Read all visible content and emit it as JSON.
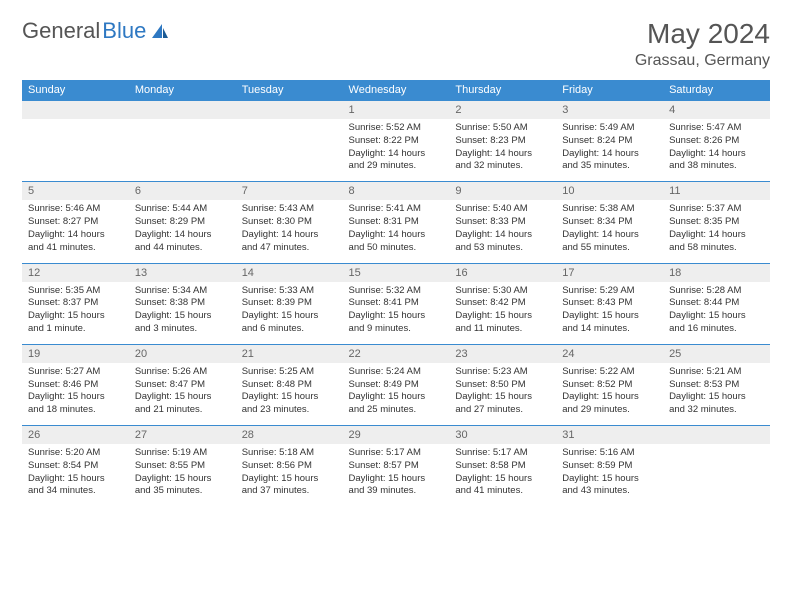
{
  "brand": {
    "part1": "General",
    "part2": "Blue"
  },
  "title": "May 2024",
  "location": "Grassau, Germany",
  "weekday_labels": [
    "Sunday",
    "Monday",
    "Tuesday",
    "Wednesday",
    "Thursday",
    "Friday",
    "Saturday"
  ],
  "header_bg": "#3a8bd0",
  "header_fg": "#ffffff",
  "daynum_bg": "#eeeeee",
  "row_border": "#3a8bd0",
  "weeks": [
    {
      "nums": [
        "",
        "",
        "",
        "1",
        "2",
        "3",
        "4"
      ],
      "details": [
        null,
        null,
        null,
        {
          "sunrise": "Sunrise: 5:52 AM",
          "sunset": "Sunset: 8:22 PM",
          "day1": "Daylight: 14 hours",
          "day2": "and 29 minutes."
        },
        {
          "sunrise": "Sunrise: 5:50 AM",
          "sunset": "Sunset: 8:23 PM",
          "day1": "Daylight: 14 hours",
          "day2": "and 32 minutes."
        },
        {
          "sunrise": "Sunrise: 5:49 AM",
          "sunset": "Sunset: 8:24 PM",
          "day1": "Daylight: 14 hours",
          "day2": "and 35 minutes."
        },
        {
          "sunrise": "Sunrise: 5:47 AM",
          "sunset": "Sunset: 8:26 PM",
          "day1": "Daylight: 14 hours",
          "day2": "and 38 minutes."
        }
      ]
    },
    {
      "nums": [
        "5",
        "6",
        "7",
        "8",
        "9",
        "10",
        "11"
      ],
      "details": [
        {
          "sunrise": "Sunrise: 5:46 AM",
          "sunset": "Sunset: 8:27 PM",
          "day1": "Daylight: 14 hours",
          "day2": "and 41 minutes."
        },
        {
          "sunrise": "Sunrise: 5:44 AM",
          "sunset": "Sunset: 8:29 PM",
          "day1": "Daylight: 14 hours",
          "day2": "and 44 minutes."
        },
        {
          "sunrise": "Sunrise: 5:43 AM",
          "sunset": "Sunset: 8:30 PM",
          "day1": "Daylight: 14 hours",
          "day2": "and 47 minutes."
        },
        {
          "sunrise": "Sunrise: 5:41 AM",
          "sunset": "Sunset: 8:31 PM",
          "day1": "Daylight: 14 hours",
          "day2": "and 50 minutes."
        },
        {
          "sunrise": "Sunrise: 5:40 AM",
          "sunset": "Sunset: 8:33 PM",
          "day1": "Daylight: 14 hours",
          "day2": "and 53 minutes."
        },
        {
          "sunrise": "Sunrise: 5:38 AM",
          "sunset": "Sunset: 8:34 PM",
          "day1": "Daylight: 14 hours",
          "day2": "and 55 minutes."
        },
        {
          "sunrise": "Sunrise: 5:37 AM",
          "sunset": "Sunset: 8:35 PM",
          "day1": "Daylight: 14 hours",
          "day2": "and 58 minutes."
        }
      ]
    },
    {
      "nums": [
        "12",
        "13",
        "14",
        "15",
        "16",
        "17",
        "18"
      ],
      "details": [
        {
          "sunrise": "Sunrise: 5:35 AM",
          "sunset": "Sunset: 8:37 PM",
          "day1": "Daylight: 15 hours",
          "day2": "and 1 minute."
        },
        {
          "sunrise": "Sunrise: 5:34 AM",
          "sunset": "Sunset: 8:38 PM",
          "day1": "Daylight: 15 hours",
          "day2": "and 3 minutes."
        },
        {
          "sunrise": "Sunrise: 5:33 AM",
          "sunset": "Sunset: 8:39 PM",
          "day1": "Daylight: 15 hours",
          "day2": "and 6 minutes."
        },
        {
          "sunrise": "Sunrise: 5:32 AM",
          "sunset": "Sunset: 8:41 PM",
          "day1": "Daylight: 15 hours",
          "day2": "and 9 minutes."
        },
        {
          "sunrise": "Sunrise: 5:30 AM",
          "sunset": "Sunset: 8:42 PM",
          "day1": "Daylight: 15 hours",
          "day2": "and 11 minutes."
        },
        {
          "sunrise": "Sunrise: 5:29 AM",
          "sunset": "Sunset: 8:43 PM",
          "day1": "Daylight: 15 hours",
          "day2": "and 14 minutes."
        },
        {
          "sunrise": "Sunrise: 5:28 AM",
          "sunset": "Sunset: 8:44 PM",
          "day1": "Daylight: 15 hours",
          "day2": "and 16 minutes."
        }
      ]
    },
    {
      "nums": [
        "19",
        "20",
        "21",
        "22",
        "23",
        "24",
        "25"
      ],
      "details": [
        {
          "sunrise": "Sunrise: 5:27 AM",
          "sunset": "Sunset: 8:46 PM",
          "day1": "Daylight: 15 hours",
          "day2": "and 18 minutes."
        },
        {
          "sunrise": "Sunrise: 5:26 AM",
          "sunset": "Sunset: 8:47 PM",
          "day1": "Daylight: 15 hours",
          "day2": "and 21 minutes."
        },
        {
          "sunrise": "Sunrise: 5:25 AM",
          "sunset": "Sunset: 8:48 PM",
          "day1": "Daylight: 15 hours",
          "day2": "and 23 minutes."
        },
        {
          "sunrise": "Sunrise: 5:24 AM",
          "sunset": "Sunset: 8:49 PM",
          "day1": "Daylight: 15 hours",
          "day2": "and 25 minutes."
        },
        {
          "sunrise": "Sunrise: 5:23 AM",
          "sunset": "Sunset: 8:50 PM",
          "day1": "Daylight: 15 hours",
          "day2": "and 27 minutes."
        },
        {
          "sunrise": "Sunrise: 5:22 AM",
          "sunset": "Sunset: 8:52 PM",
          "day1": "Daylight: 15 hours",
          "day2": "and 29 minutes."
        },
        {
          "sunrise": "Sunrise: 5:21 AM",
          "sunset": "Sunset: 8:53 PM",
          "day1": "Daylight: 15 hours",
          "day2": "and 32 minutes."
        }
      ]
    },
    {
      "nums": [
        "26",
        "27",
        "28",
        "29",
        "30",
        "31",
        ""
      ],
      "details": [
        {
          "sunrise": "Sunrise: 5:20 AM",
          "sunset": "Sunset: 8:54 PM",
          "day1": "Daylight: 15 hours",
          "day2": "and 34 minutes."
        },
        {
          "sunrise": "Sunrise: 5:19 AM",
          "sunset": "Sunset: 8:55 PM",
          "day1": "Daylight: 15 hours",
          "day2": "and 35 minutes."
        },
        {
          "sunrise": "Sunrise: 5:18 AM",
          "sunset": "Sunset: 8:56 PM",
          "day1": "Daylight: 15 hours",
          "day2": "and 37 minutes."
        },
        {
          "sunrise": "Sunrise: 5:17 AM",
          "sunset": "Sunset: 8:57 PM",
          "day1": "Daylight: 15 hours",
          "day2": "and 39 minutes."
        },
        {
          "sunrise": "Sunrise: 5:17 AM",
          "sunset": "Sunset: 8:58 PM",
          "day1": "Daylight: 15 hours",
          "day2": "and 41 minutes."
        },
        {
          "sunrise": "Sunrise: 5:16 AM",
          "sunset": "Sunset: 8:59 PM",
          "day1": "Daylight: 15 hours",
          "day2": "and 43 minutes."
        },
        null
      ]
    }
  ]
}
